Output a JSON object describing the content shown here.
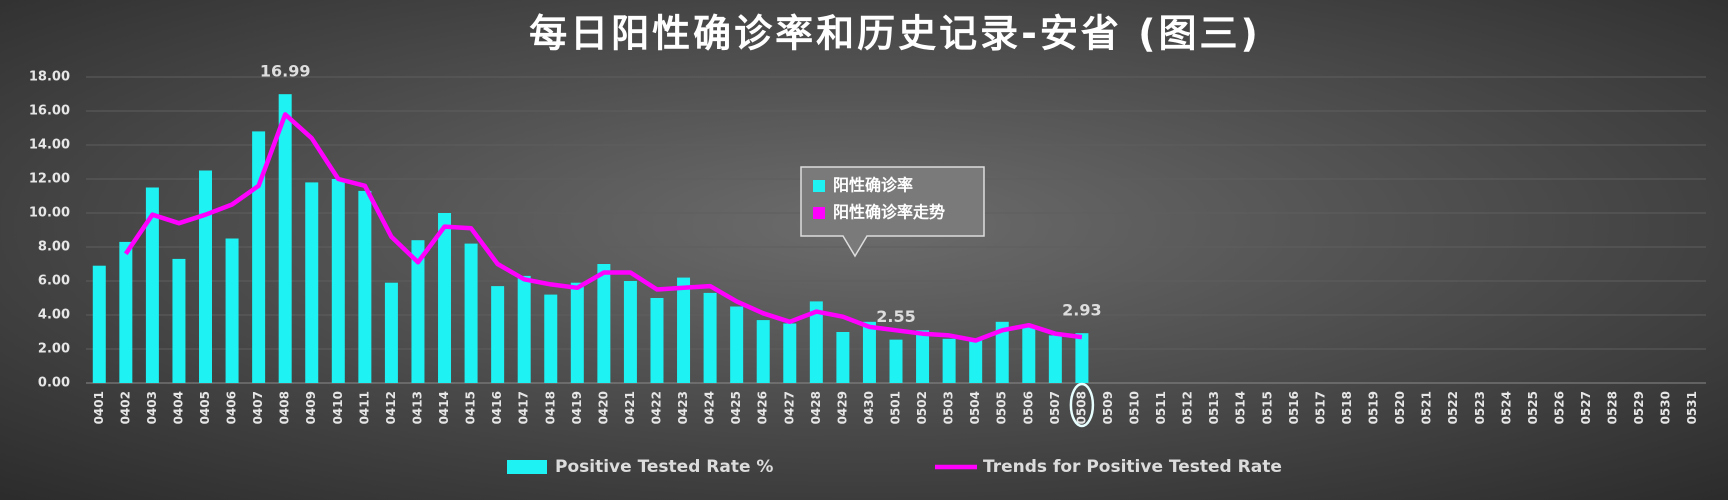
{
  "chart_data": {
    "type": "bar",
    "title": "每日阳性确诊率和历史记录-安省 (图三)",
    "categories": [
      "0401",
      "0402",
      "0403",
      "0404",
      "0405",
      "0406",
      "0407",
      "0408",
      "0409",
      "0410",
      "0411",
      "0412",
      "0413",
      "0414",
      "0415",
      "0416",
      "0417",
      "0418",
      "0419",
      "0420",
      "0421",
      "0422",
      "0423",
      "0424",
      "0425",
      "0426",
      "0427",
      "0428",
      "0429",
      "0430",
      "0501",
      "0502",
      "0503",
      "0504",
      "0505",
      "0506",
      "0507",
      "0508",
      "0509",
      "0510",
      "0511",
      "0512",
      "0513",
      "0514",
      "0515",
      "0516",
      "0517",
      "0518",
      "0519",
      "0520",
      "0521",
      "0522",
      "0523",
      "0524",
      "0525",
      "0526",
      "0527",
      "0528",
      "0529",
      "0530",
      "0531"
    ],
    "series": [
      {
        "name": "Positive Tested Rate %",
        "type": "bar",
        "color": "#1ef2f2",
        "values": [
          6.9,
          8.3,
          11.5,
          7.3,
          12.5,
          8.5,
          14.8,
          16.99,
          11.8,
          12.0,
          11.3,
          5.9,
          8.4,
          10.0,
          8.2,
          5.7,
          6.3,
          5.2,
          5.9,
          7.0,
          6.0,
          5.0,
          6.2,
          5.3,
          4.5,
          3.7,
          3.5,
          4.8,
          3.0,
          3.6,
          2.55,
          3.1,
          2.6,
          2.6,
          3.6,
          3.4,
          2.8,
          2.93,
          null,
          null,
          null,
          null,
          null,
          null,
          null,
          null,
          null,
          null,
          null,
          null,
          null,
          null,
          null,
          null,
          null,
          null,
          null,
          null,
          null,
          null,
          null
        ],
        "value_labels": [
          null,
          null,
          null,
          null,
          null,
          null,
          null,
          "16.99",
          null,
          null,
          null,
          null,
          null,
          null,
          null,
          null,
          null,
          null,
          null,
          null,
          null,
          null,
          null,
          null,
          null,
          null,
          null,
          null,
          null,
          null,
          "2.55",
          null,
          null,
          null,
          null,
          null,
          null,
          "2.93",
          null,
          null,
          null,
          null,
          null,
          null,
          null,
          null,
          null,
          null,
          null,
          null,
          null,
          null,
          null,
          null,
          null,
          null,
          null,
          null,
          null,
          null,
          null
        ]
      },
      {
        "name": "Trends for Positive Tested Rate",
        "type": "line",
        "color": "#ff00ff",
        "values": [
          null,
          7.6,
          9.9,
          9.4,
          9.9,
          10.5,
          11.6,
          15.8,
          14.4,
          12.0,
          11.6,
          8.6,
          7.1,
          9.2,
          9.1,
          7.0,
          6.1,
          5.8,
          5.6,
          6.5,
          6.5,
          5.5,
          5.6,
          5.7,
          4.8,
          4.1,
          3.6,
          4.2,
          3.9,
          3.3,
          3.1,
          2.9,
          2.8,
          2.5,
          3.1,
          3.4,
          2.9,
          2.7,
          null,
          null,
          null,
          null,
          null,
          null,
          null,
          null,
          null,
          null,
          null,
          null,
          null,
          null,
          null,
          null,
          null,
          null,
          null,
          null,
          null,
          null,
          null
        ]
      }
    ],
    "callout_legend": [
      "阳性确诊率",
      "阳性确诊率走势"
    ],
    "ylim": [
      0,
      18
    ],
    "yticks": [
      {
        "value": 0,
        "label": "0.00"
      },
      {
        "value": 2,
        "label": "2.00"
      },
      {
        "value": 4,
        "label": "4.00"
      },
      {
        "value": 6,
        "label": "6.00"
      },
      {
        "value": 8,
        "label": "8.00"
      },
      {
        "value": 10,
        "label": "10.00"
      },
      {
        "value": 12,
        "label": "12.00"
      },
      {
        "value": 14,
        "label": "14.00"
      },
      {
        "value": 16,
        "label": "16.00"
      },
      {
        "value": 18,
        "label": "18.00"
      }
    ],
    "grid": true,
    "legend": "bottom"
  }
}
